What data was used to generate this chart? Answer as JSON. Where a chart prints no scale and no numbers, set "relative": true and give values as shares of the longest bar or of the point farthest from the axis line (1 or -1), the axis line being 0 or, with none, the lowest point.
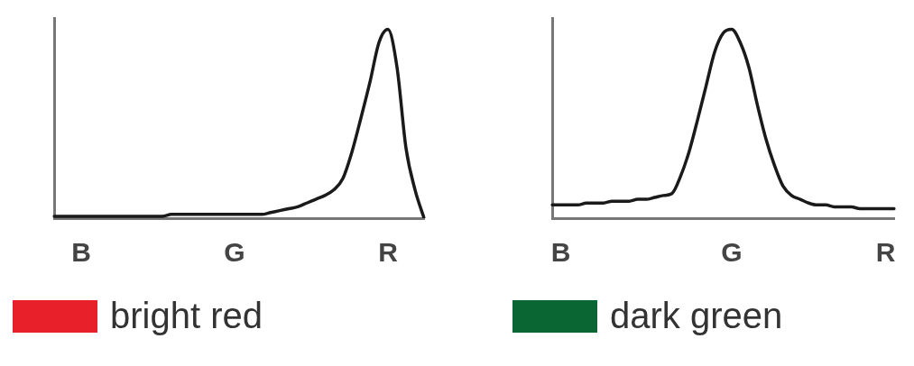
{
  "chart_data": [
    {
      "type": "line",
      "relative": true,
      "tick_labels": "x",
      "grid": false,
      "legend": false,
      "marker": "none",
      "annotations": [
        "bright red"
      ],
      "categories": [
        null,
        null,
        null,
        "B",
        null,
        null,
        null,
        null,
        null,
        null,
        null,
        null,
        null,
        null,
        null,
        null,
        null,
        null,
        null,
        null,
        "G",
        null,
        null,
        null,
        null,
        null,
        null,
        null,
        null,
        null,
        null,
        null,
        null,
        null,
        null,
        null,
        null,
        "R",
        null,
        null,
        null,
        null
      ],
      "series": [
        {
          "color": "#1a1a1a",
          "values": [
            0.01,
            0.01,
            0.01,
            0.01,
            0.01,
            0.01,
            0.01,
            0.01,
            0.01,
            0.01,
            0.01,
            0.01,
            0.01,
            0.02,
            0.02,
            0.02,
            0.02,
            0.02,
            0.02,
            0.02,
            0.02,
            0.02,
            0.02,
            0.02,
            0.03,
            0.04,
            0.05,
            0.06,
            0.08,
            0.1,
            0.12,
            0.15,
            0.21,
            0.35,
            0.53,
            0.72,
            0.93,
            1,
            0.8,
            0.37,
            0.15,
            0
          ]
        }
      ]
    },
    {
      "type": "line",
      "relative": true,
      "tick_labels": "x",
      "grid": false,
      "legend": false,
      "marker": "none",
      "annotations": [
        "dark green"
      ],
      "categories": [
        null,
        "B",
        null,
        null,
        null,
        null,
        null,
        null,
        null,
        null,
        null,
        null,
        null,
        null,
        null,
        null,
        null,
        null,
        null,
        null,
        null,
        "G",
        null,
        null,
        null,
        null,
        null,
        null,
        null,
        null,
        null,
        null,
        null,
        null,
        null,
        null,
        null,
        null,
        null,
        "R",
        null
      ],
      "series": [
        {
          "color": "#1a1a1a",
          "values": [
            0.07,
            0.07,
            0.07,
            0.07,
            0.08,
            0.08,
            0.08,
            0.09,
            0.09,
            0.09,
            0.1,
            0.1,
            0.11,
            0.12,
            0.13,
            0.22,
            0.35,
            0.52,
            0.7,
            0.88,
            0.98,
            1,
            0.93,
            0.8,
            0.6,
            0.42,
            0.28,
            0.17,
            0.12,
            0.1,
            0.08,
            0.07,
            0.07,
            0.06,
            0.06,
            0.06,
            0.05,
            0.05,
            0.05,
            0.05,
            0.05
          ]
        }
      ]
    }
  ]
}
